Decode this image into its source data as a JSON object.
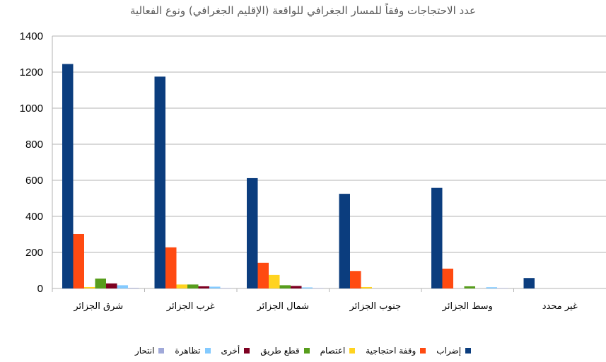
{
  "chart_data": {
    "type": "bar",
    "title": "عدد الاحتجاجات وفقاً للمسار الجغرافي للواقعة (الإقليم الجغرافي) ونوع الفعالية",
    "categories": [
      "شرق الجزائر",
      "غرب الجزائر",
      "شمال الجزائر",
      "جنوب الجزائر",
      "وسط الجزائر",
      "غير محدد"
    ],
    "ylim": [
      0,
      1400
    ],
    "yticks": [
      0,
      200,
      400,
      600,
      800,
      1000,
      1200,
      1400
    ],
    "grid": true,
    "legend_position": "bottom",
    "series": [
      {
        "name": "إضراب",
        "color": "#0B3D7E",
        "values": [
          1245,
          1175,
          612,
          525,
          558,
          58
        ]
      },
      {
        "name": "وقفة احتجاجية",
        "color": "#FF4A11",
        "values": [
          302,
          228,
          142,
          97,
          110,
          0
        ]
      },
      {
        "name": "اعتصام",
        "color": "#FFD320",
        "values": [
          8,
          22,
          75,
          8,
          0,
          0
        ]
      },
      {
        "name": "قطع طريق",
        "color": "#579D1C",
        "values": [
          55,
          22,
          18,
          0,
          12,
          0
        ]
      },
      {
        "name": "أخرى",
        "color": "#7E0021",
        "values": [
          28,
          12,
          14,
          0,
          0,
          0
        ]
      },
      {
        "name": "تظاهرة",
        "color": "#83CAFF",
        "values": [
          18,
          10,
          6,
          0,
          7,
          0
        ]
      },
      {
        "name": "انتحار",
        "color": "#A0A9D9",
        "values": [
          3,
          2,
          2,
          0,
          2,
          0
        ]
      }
    ]
  }
}
